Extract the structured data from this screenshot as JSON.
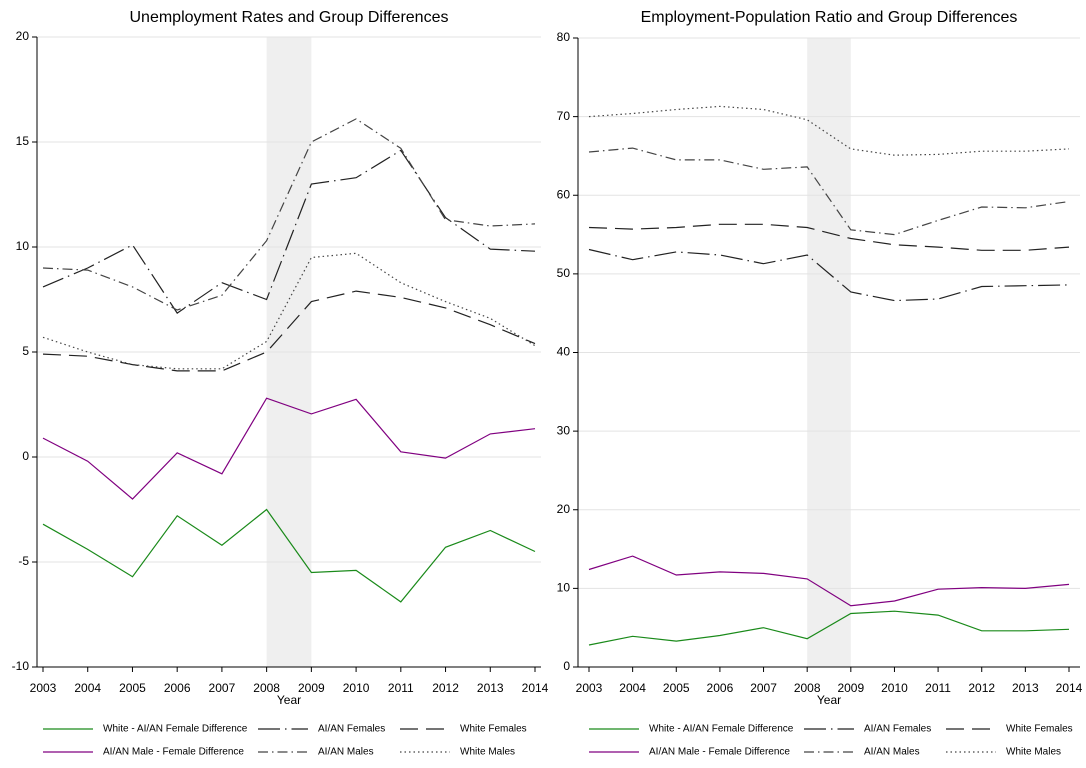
{
  "chart_data": [
    {
      "type": "line",
      "title": "Unemployment Rates and Group Differences",
      "x_label": "Year",
      "x": [
        2003,
        2004,
        2005,
        2006,
        2007,
        2008,
        2009,
        2010,
        2011,
        2012,
        2013,
        2014
      ],
      "xlim": [
        2003,
        2014
      ],
      "xticks": [
        2003,
        2004,
        2005,
        2006,
        2007,
        2008,
        2009,
        2010,
        2011,
        2012,
        2013,
        2014
      ],
      "ylim": [
        -10,
        20
      ],
      "yticks": [
        -10,
        -5,
        0,
        5,
        10,
        15,
        20
      ],
      "grid": true,
      "shaded_region": [
        2008,
        2009
      ],
      "series": [
        {
          "name": "White - AI/AN Female Difference",
          "color": "#1a8a1a",
          "dash": "solid",
          "values": [
            -3.2,
            -4.4,
            -5.7,
            -2.8,
            -4.2,
            -2.5,
            -5.5,
            -5.4,
            -6.9,
            -4.3,
            -3.5,
            -4.5
          ]
        },
        {
          "name": "AI/AN Females",
          "color": "#222222",
          "dash": "longdashdot",
          "values": [
            8.1,
            9.0,
            10.1,
            6.85,
            8.3,
            7.5,
            13.0,
            13.3,
            14.6,
            11.4,
            9.9,
            9.8
          ]
        },
        {
          "name": "White Females",
          "color": "#222222",
          "dash": "longdash",
          "values": [
            4.9,
            4.8,
            4.4,
            4.1,
            4.1,
            5.0,
            7.4,
            7.9,
            7.6,
            7.1,
            6.3,
            5.4
          ]
        },
        {
          "name": "AI/AN Male - Female Difference",
          "color": "#800080",
          "dash": "solid",
          "values": [
            0.9,
            -0.2,
            -2.0,
            0.2,
            -0.8,
            2.8,
            2.05,
            2.75,
            0.25,
            -0.05,
            1.1,
            1.35
          ]
        },
        {
          "name": "AI/AN Males",
          "color": "#444444",
          "dash": "dashdot",
          "values": [
            9.0,
            8.9,
            8.1,
            7.0,
            7.7,
            10.3,
            15.0,
            16.1,
            14.7,
            11.3,
            11.0,
            11.1
          ]
        },
        {
          "name": "White Males",
          "color": "#444444",
          "dash": "dot",
          "values": [
            5.7,
            5.0,
            4.4,
            4.2,
            4.2,
            5.5,
            9.5,
            9.7,
            8.3,
            7.4,
            6.6,
            5.3
          ]
        }
      ]
    },
    {
      "type": "line",
      "title": "Employment-Population Ratio and Group Differences",
      "x_label": "Year",
      "x": [
        2003,
        2004,
        2005,
        2006,
        2007,
        2008,
        2009,
        2010,
        2011,
        2012,
        2013,
        2014
      ],
      "xlim": [
        2003,
        2014
      ],
      "xticks": [
        2003,
        2004,
        2005,
        2006,
        2007,
        2008,
        2009,
        2010,
        2011,
        2012,
        2013,
        2014
      ],
      "ylim": [
        0,
        80
      ],
      "yticks": [
        0,
        10,
        20,
        30,
        40,
        50,
        60,
        70,
        80
      ],
      "grid": true,
      "shaded_region": [
        2008,
        2009
      ],
      "series": [
        {
          "name": "White - AI/AN Female Difference",
          "color": "#1a8a1a",
          "dash": "solid",
          "values": [
            2.8,
            3.9,
            3.3,
            4.0,
            5.0,
            3.6,
            6.8,
            7.1,
            6.6,
            4.6,
            4.6,
            4.8
          ]
        },
        {
          "name": "AI/AN Females",
          "color": "#222222",
          "dash": "longdashdot",
          "values": [
            53.1,
            51.8,
            52.8,
            52.4,
            51.3,
            52.4,
            47.7,
            46.6,
            46.8,
            48.4,
            48.5,
            48.6
          ]
        },
        {
          "name": "White Females",
          "color": "#222222",
          "dash": "longdash",
          "values": [
            55.9,
            55.7,
            55.9,
            56.3,
            56.3,
            55.9,
            54.5,
            53.7,
            53.4,
            53.0,
            53.0,
            53.4
          ]
        },
        {
          "name": "AI/AN Male - Female Difference",
          "color": "#800080",
          "dash": "solid",
          "values": [
            12.4,
            14.1,
            11.7,
            12.1,
            11.9,
            11.2,
            7.8,
            8.4,
            9.9,
            10.1,
            10.0,
            10.5
          ]
        },
        {
          "name": "AI/AN Males",
          "color": "#444444",
          "dash": "dashdot",
          "values": [
            65.5,
            66.0,
            64.5,
            64.5,
            63.3,
            63.6,
            55.6,
            55.0,
            56.8,
            58.5,
            58.4,
            59.2
          ]
        },
        {
          "name": "White Males",
          "color": "#444444",
          "dash": "dot",
          "values": [
            70.0,
            70.4,
            70.9,
            71.3,
            70.9,
            69.6,
            65.9,
            65.1,
            65.2,
            65.6,
            65.6,
            65.9
          ]
        }
      ]
    }
  ]
}
